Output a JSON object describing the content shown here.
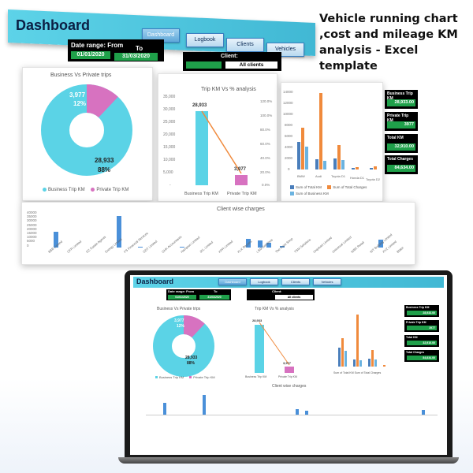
{
  "promo": {
    "line1": "Vehicle running chart",
    "line2": ",cost and mileage KM",
    "line3": "analysis - Excel template"
  },
  "dashboard": {
    "title": "Dashboard",
    "nav": [
      "Dashboard",
      "Logbook",
      "Clients",
      "Vehicles"
    ],
    "date_range_label": "Date range: From",
    "to_label": "To",
    "from_date": "01/01/2020",
    "to_date": "31/03/2020",
    "client_label": "Client:",
    "client_value": "All clients"
  },
  "pie": {
    "title": "Business Vs Private trips",
    "business_value": "28,933",
    "business_pct": "88%",
    "private_value": "3,977",
    "private_pct": "12%",
    "legend_business": "Business Trip KM",
    "legend_private": "Private Trip KM",
    "colors": {
      "business": "#5bd3e6",
      "private": "#d772c0"
    }
  },
  "trip": {
    "title": "Trip KM Vs % analysis",
    "business_label": "28,933",
    "private_label": "3,977",
    "y_ticks": [
      "35,000",
      "30,000",
      "25,000",
      "20,000",
      "15,000",
      "10,000",
      "5,000",
      "-"
    ],
    "y2_ticks": [
      "120.0%",
      "100.0%",
      "80.0%",
      "60.0%",
      "40.0%",
      "20.0%",
      "0.0%"
    ],
    "categories": [
      "Business Trip KM",
      "Private Trip KM"
    ]
  },
  "bars": {
    "y_ticks": [
      "14000",
      "12000",
      "10000",
      "8000",
      "6000",
      "4000",
      "2000",
      "0"
    ],
    "categories": [
      "BMW",
      "Audi",
      "Toyota D1",
      "Honda D1",
      "Toyota D2"
    ],
    "legend": [
      "Sum of Total KM",
      "Sum of Total Charges",
      "Sum of Business KM"
    ],
    "colors": {
      "total_km": "#4a7ebb",
      "charges": "#f08a3c",
      "business": "#6bb3e0"
    }
  },
  "metrics": [
    {
      "label": "Business Trip KM",
      "value": "28,933.00"
    },
    {
      "label": "Private Trip KM",
      "value": "3977"
    },
    {
      "label": "Total KM",
      "value": "32,910.00"
    },
    {
      "label": "Total Charges",
      "value": "84,634.00"
    }
  ],
  "client_chart": {
    "title": "Client wise charges",
    "y_ticks": [
      "40000",
      "35000",
      "30000",
      "25000",
      "20000",
      "15000",
      "10000",
      "5000",
      "0"
    ],
    "categories": [
      "BBB Limited",
      "CFR Limited",
      "EC Estate Agents",
      "Energy Limited",
      "FS Financial Services",
      "GDT Limited",
      "GHK Accountants",
      "Hampton Limited",
      "JKL Limited",
      "KPR Limited",
      "KLK Repairs",
      "LSM Solutions",
      "The Paint Shop",
      "TSM Solutions",
      "Urquhart Limited",
      "Universal Limited",
      "WBE Retail",
      "WT Building Limited",
      "XYZ Limited",
      "Blake"
    ]
  }
}
